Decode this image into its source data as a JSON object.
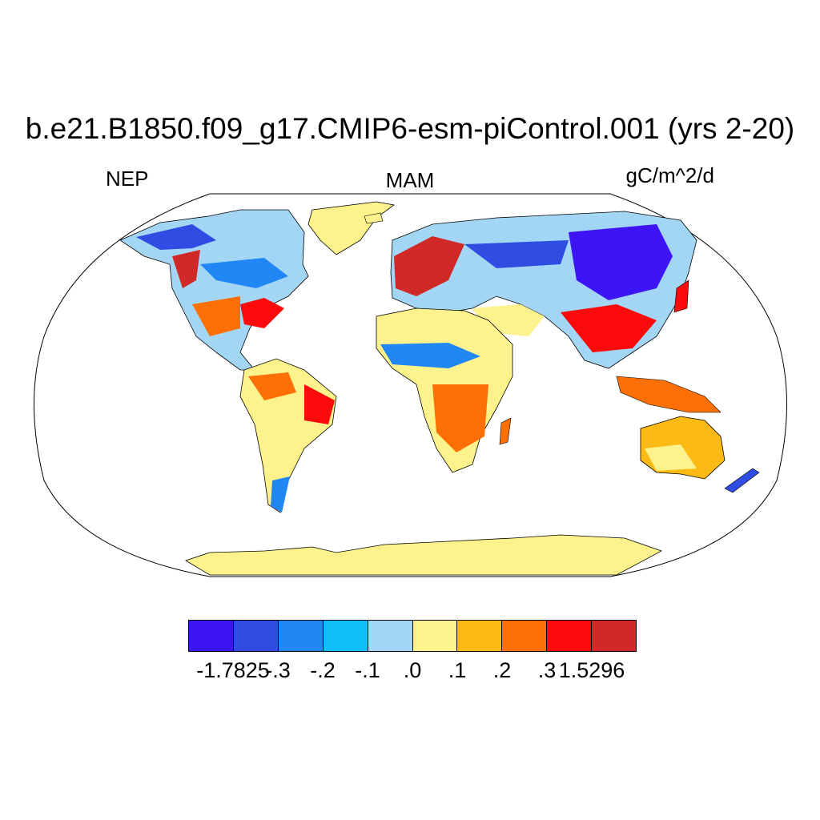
{
  "title": "b.e21.B1850.f09_g17.CMIP6-esm-piControl.001 (yrs 2-20)",
  "left_label": "NEP",
  "center_label": "MAM",
  "right_label": "gC/m^2/d",
  "colorbar": {
    "colors": [
      "#3c14f5",
      "#2f4de2",
      "#2187f4",
      "#12bef8",
      "#a2d6f4",
      "#fdf28b",
      "#fdba15",
      "#fe7005",
      "#fa0a0a",
      "#d12828"
    ],
    "labels": [
      "-1.7825",
      "-.3",
      "-.2",
      "-.1",
      ".0",
      ".1",
      ".2",
      ".3",
      "1.5296"
    ]
  },
  "map": {
    "projection": "Robinson",
    "ocean_color": "#ffffff",
    "coastline_color": "#000000"
  }
}
